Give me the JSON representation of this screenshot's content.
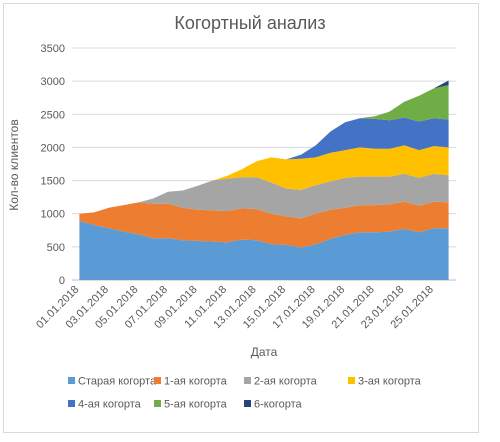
{
  "chart_data": {
    "type": "area",
    "title": "Когортный анализ",
    "xlabel": "Дата",
    "ylabel": "Кол-во клиентов",
    "ylim": [
      0,
      3500
    ],
    "yticks": [
      0,
      500,
      1000,
      1500,
      2000,
      2500,
      3000,
      3500
    ],
    "grid": true,
    "legend_position": "bottom",
    "x_tick_labels": [
      "01.01.2018",
      "03.01.2018",
      "05.01.2018",
      "07.01.2018",
      "09.01.2018",
      "11.01.2018",
      "13.01.2018",
      "15.01.2018",
      "17.01.2018",
      "19.01.2018",
      "21.01.2018",
      "23.01.2018",
      "25.01.2018"
    ],
    "x": [
      "01.01.2018",
      "02.01.2018",
      "03.01.2018",
      "04.01.2018",
      "05.01.2018",
      "06.01.2018",
      "07.01.2018",
      "08.01.2018",
      "09.01.2018",
      "10.01.2018",
      "11.01.2018",
      "12.01.2018",
      "13.01.2018",
      "14.01.2018",
      "15.01.2018",
      "16.01.2018",
      "17.01.2018",
      "18.01.2018",
      "19.01.2018",
      "20.01.2018",
      "21.01.2018",
      "22.01.2018",
      "23.01.2018",
      "24.01.2018",
      "25.01.2018",
      "26.01.2018"
    ],
    "series": [
      {
        "name": "Старая когорта",
        "color": "#5b9bd5",
        "values": [
          890,
          830,
          780,
          730,
          690,
          630,
          630,
          600,
          590,
          580,
          570,
          610,
          600,
          540,
          530,
          490,
          540,
          620,
          680,
          720,
          720,
          730,
          770,
          720,
          780,
          780
        ]
      },
      {
        "name": "1-ая когорта",
        "color": "#ed7d31",
        "values": [
          110,
          190,
          310,
          400,
          480,
          520,
          520,
          490,
          470,
          470,
          470,
          470,
          470,
          460,
          430,
          440,
          460,
          440,
          410,
          410,
          410,
          410,
          410,
          400,
          400,
          390
        ]
      },
      {
        "name": "2-ая когорта",
        "color": "#a5a5a5",
        "values": [
          0,
          0,
          0,
          0,
          0,
          80,
          180,
          260,
          360,
          450,
          490,
          470,
          480,
          470,
          420,
          430,
          430,
          430,
          450,
          430,
          430,
          420,
          420,
          420,
          420,
          410
        ]
      },
      {
        "name": "3-ая когорта",
        "color": "#ffc000",
        "values": [
          0,
          0,
          0,
          0,
          0,
          0,
          0,
          0,
          0,
          0,
          40,
          120,
          240,
          380,
          440,
          470,
          420,
          430,
          420,
          440,
          420,
          420,
          430,
          420,
          420,
          420
        ]
      },
      {
        "name": "4-ая когорта",
        "color": "#4472c4",
        "values": [
          0,
          0,
          0,
          0,
          0,
          0,
          0,
          0,
          0,
          0,
          0,
          0,
          0,
          0,
          0,
          60,
          180,
          320,
          420,
          440,
          450,
          430,
          420,
          430,
          420,
          420
        ]
      },
      {
        "name": "5-ая когорта",
        "color": "#70ad47",
        "values": [
          0,
          0,
          0,
          0,
          0,
          0,
          0,
          0,
          0,
          0,
          0,
          0,
          0,
          0,
          0,
          0,
          0,
          0,
          0,
          0,
          40,
          130,
          240,
          390,
          450,
          520
        ]
      },
      {
        "name": "6-когорта",
        "color": "#264478",
        "values": [
          0,
          0,
          0,
          0,
          0,
          0,
          0,
          0,
          0,
          0,
          0,
          0,
          0,
          0,
          0,
          0,
          0,
          0,
          0,
          0,
          0,
          0,
          0,
          0,
          0,
          70
        ]
      }
    ]
  }
}
